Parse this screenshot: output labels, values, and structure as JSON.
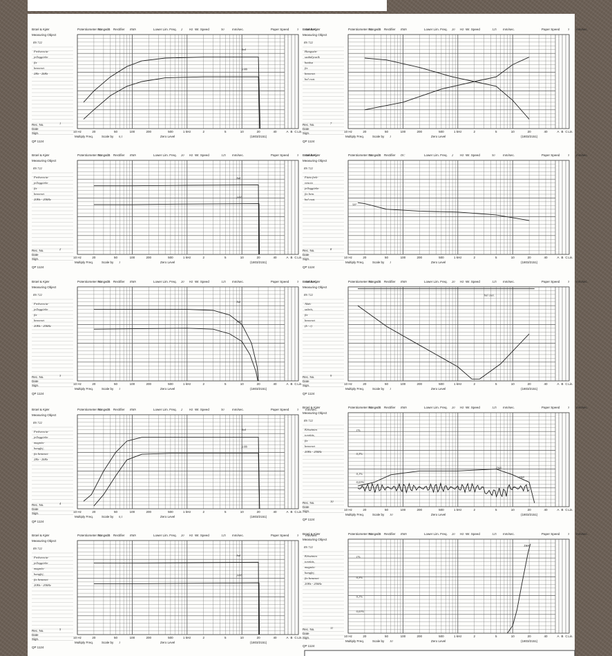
{
  "form": {
    "brand": "Brüel & Kjær",
    "measuring_object": "Measuring Object",
    "pot_range": "Potentiometer Range",
    "db": "dB",
    "rectifier": "Rectifier",
    "lower_lim": "Lower Lim. Freq.",
    "hz": "Hz",
    "wr_speed": "Wr. Speed",
    "mm_sec": "mm/sec.",
    "paper_speed": "Paper Speed",
    "multiply": "Multiply Freq.",
    "scale_by": "Scale by",
    "zero_level": "Zero Level",
    "rec_no": "Rec. No.",
    "date": "Date",
    "sign": "Sign.",
    "form_no": "QP 1124",
    "chart_no": "(1803/2151)",
    "freq_labels": [
      "10 Hz",
      "20",
      "50",
      "100",
      "200",
      "500",
      "1 kHz",
      "2",
      "5",
      "10",
      "20",
      "40",
      "A",
      "B",
      "C",
      "Lin."
    ]
  },
  "panels": [
    {
      "number": "1",
      "object": "RS 722",
      "range": "50",
      "rectifier": "RMS",
      "lower_lim": "2",
      "wr_speed": "50",
      "paper_speed": "3",
      "note": [
        "Frekvencia-",
        "jelleggörbe",
        "fix",
        "bemenet",
        "2Hz - 2kHz"
      ],
      "scale": "0,1",
      "labels": [
        "bal",
        "jobb"
      ]
    },
    {
      "number": "2",
      "object": "RS 722",
      "range": "50",
      "rectifier": "RMS",
      "lower_lim": "20",
      "wr_speed": "125",
      "paper_speed": "3",
      "note": [
        "Frekvencia-",
        "jelleggörbe",
        "fix",
        "bemenet",
        "20Hz - 20kHz"
      ],
      "scale": "1",
      "labels": [
        "bal",
        "jobb"
      ]
    },
    {
      "number": "3",
      "object": "RS 722",
      "range": "50",
      "rectifier": "RMS",
      "lower_lim": "20",
      "wr_speed": "125",
      "paper_speed": "3",
      "note": [
        "Frekvencia-",
        "jelleggörbe",
        "fix",
        "bemenet",
        "20Hz - 20kHz"
      ],
      "scale": "1",
      "labels": [
        "bal",
        "jobb"
      ]
    },
    {
      "number": "4",
      "object": "RS 722",
      "range": "50",
      "rectifier": "RMS",
      "lower_lim": "2",
      "wr_speed": "50",
      "paper_speed": "3",
      "note": [
        "Frekvencia-",
        "jelleggörbe",
        "magnós-",
        "hangfej,",
        "fix bemenet",
        "2Hz - 2kHz"
      ],
      "scale": "0,1",
      "labels": [
        "bal",
        "jobb"
      ]
    },
    {
      "number": "5",
      "object": "RS 722",
      "range": "50",
      "rectifier": "RMS",
      "lower_lim": "20",
      "wr_speed": "125",
      "paper_speed": "3",
      "note": [
        "Frekvencia-",
        "jelleggörbe",
        "magnós-",
        "hangfej,",
        "fix bemenet",
        "20Hz - 20kHz"
      ],
      "scale": "1",
      "labels": [
        "bal",
        "jobb"
      ]
    },
    {
      "number": "7",
      "object": "RS 722",
      "range": "50",
      "rectifier": "RMS",
      "lower_lim": "20",
      "wr_speed": "125",
      "paper_speed": "3",
      "note": [
        "Hangszín-",
        "szabályozók",
        "hatása",
        "fix",
        "bemenet",
        "bal csat."
      ],
      "scale": "1",
      "labels": []
    },
    {
      "number": "8",
      "object": "RS 722",
      "range": "16",
      "rectifier": "DC",
      "lower_lim": "2",
      "wr_speed": "50",
      "paper_speed": "3",
      "note": [
        "Fázis-frek-",
        "vencia",
        "jelleggörbe",
        "fix bem.",
        "bal csat."
      ],
      "scale": "1",
      "labels": [
        "90°"
      ]
    },
    {
      "number": "9",
      "object": "RS 722",
      "range": "50",
      "rectifier": "RMS",
      "lower_lim": "20",
      "wr_speed": "125",
      "paper_speed": "3",
      "note": [
        "Aktív",
        "szűrés,",
        "fix",
        "bemenet",
        "(b - r)"
      ],
      "scale": "1",
      "labels": [
        "bal csat."
      ]
    },
    {
      "number": "10",
      "object": "RS 722",
      "range": "50",
      "rectifier": "RMS",
      "lower_lim": "20",
      "wr_speed": "125",
      "paper_speed": "3",
      "note": [
        "Kétszintes",
        "torzítás,",
        "fix",
        "bemenet",
        "20Hz - 20kHz"
      ],
      "scale": "10",
      "labels": [
        "1%",
        "0,3%",
        "0,1%",
        "0,03%",
        "DH²",
        "DH³"
      ]
    },
    {
      "number": "11",
      "object": "RS 722",
      "range": "50",
      "rectifier": "RMS",
      "lower_lim": "20",
      "wr_speed": "125",
      "paper_speed": "3",
      "note": [
        "Kétszintes",
        "torzítás,",
        "magnós-",
        "hangfej,",
        "fix bemenet",
        "20Hz - 20kHz"
      ],
      "scale": "10",
      "labels": [
        "1%",
        "0,3%",
        "0,1%",
        "0,03%",
        "DH³"
      ]
    }
  ]
}
